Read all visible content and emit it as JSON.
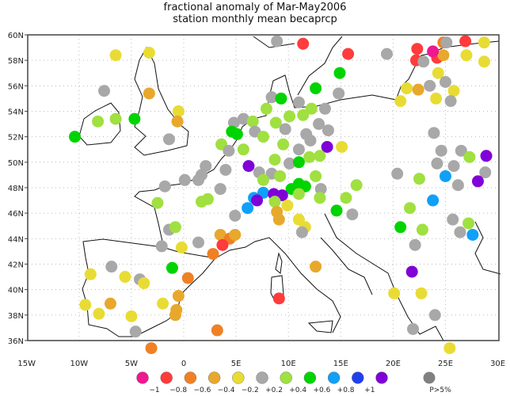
{
  "title": "fractional anomaly of Mar-May2006",
  "subtitle": "station monthly mean becaprcp",
  "map": {
    "lon_range": [
      -15,
      30
    ],
    "lat_range": [
      35,
      60
    ],
    "lon_ticks": [
      "15W",
      "10W",
      "5W",
      "0",
      "5E",
      "10E",
      "15E",
      "20E",
      "25E",
      "30E"
    ],
    "lat_ticks": [
      "36N",
      "38N",
      "40N",
      "42N",
      "44N",
      "46N",
      "48N",
      "50N",
      "52N",
      "54N",
      "56N",
      "58N",
      "60N"
    ],
    "grid": "dotted"
  },
  "legend": {
    "classes": [
      {
        "color": "#ee1890",
        "label": "−1"
      },
      {
        "color": "#ff3b3b",
        "label": "−0.8"
      },
      {
        "color": "#f08024",
        "label": "−0.6"
      },
      {
        "color": "#e8a82c",
        "label": "−0.4"
      },
      {
        "color": "#e8dc34",
        "label": "−0.2"
      },
      {
        "color": "#a8a8a8",
        "label": "+0.2"
      },
      {
        "color": "#a0e040",
        "label": "+0.4"
      },
      {
        "color": "#00d400",
        "label": "+0.6"
      },
      {
        "color": "#10a0f8",
        "label": "+0.8"
      },
      {
        "color": "#2040f0",
        "label": "+1"
      },
      {
        "color": "#8000d8",
        "label": ""
      }
    ],
    "significance": {
      "color": "#808080",
      "label": "P>5%"
    }
  },
  "stations": [
    [
      -6.5,
      58.4,
      4
    ],
    [
      -3.3,
      58.6,
      4
    ],
    [
      -7.6,
      55.6,
      5
    ],
    [
      -3.3,
      55.4,
      3
    ],
    [
      -0.5,
      54.0,
      4
    ],
    [
      -0.6,
      53.2,
      3
    ],
    [
      -8.2,
      53.2,
      6
    ],
    [
      -6.5,
      53.4,
      6
    ],
    [
      -4.7,
      53.4,
      7
    ],
    [
      -10.4,
      52.0,
      7
    ],
    [
      -1.4,
      51.8,
      5
    ],
    [
      8.9,
      59.5,
      5
    ],
    [
      11.4,
      59.3,
      1
    ],
    [
      15.7,
      58.5,
      1
    ],
    [
      14.9,
      57.0,
      7
    ],
    [
      19.4,
      58.5,
      5
    ],
    [
      12.6,
      55.8,
      7
    ],
    [
      14.8,
      55.4,
      5
    ],
    [
      8.4,
      55.1,
      5
    ],
    [
      9.3,
      55.0,
      7
    ],
    [
      11.0,
      54.7,
      5
    ],
    [
      24.8,
      59.4,
      2
    ],
    [
      25.1,
      59.4,
      5
    ],
    [
      26.9,
      59.5,
      1
    ],
    [
      28.7,
      59.4,
      4
    ],
    [
      22.3,
      58.9,
      1
    ],
    [
      22.2,
      58.0,
      1
    ],
    [
      22.9,
      57.9,
      5
    ],
    [
      24.2,
      58.2,
      1
    ],
    [
      24.8,
      58.4,
      3
    ],
    [
      23.8,
      58.7,
      0
    ],
    [
      27.0,
      58.4,
      4
    ],
    [
      28.7,
      57.9,
      4
    ],
    [
      24.3,
      57.0,
      4
    ],
    [
      25.0,
      56.3,
      5
    ],
    [
      21.3,
      55.8,
      4
    ],
    [
      22.4,
      55.7,
      3
    ],
    [
      23.5,
      56.0,
      5
    ],
    [
      25.8,
      55.6,
      4
    ],
    [
      24.1,
      55.0,
      4
    ],
    [
      25.5,
      54.8,
      5
    ],
    [
      20.7,
      54.8,
      4
    ],
    [
      7.9,
      54.2,
      6
    ],
    [
      10.1,
      53.6,
      6
    ],
    [
      11.4,
      53.7,
      6
    ],
    [
      12.2,
      54.2,
      6
    ],
    [
      13.5,
      54.2,
      5
    ],
    [
      4.8,
      53.1,
      5
    ],
    [
      5.7,
      53.4,
      5
    ],
    [
      6.6,
      53.2,
      6
    ],
    [
      8.8,
      53.1,
      6
    ],
    [
      9.7,
      52.6,
      5
    ],
    [
      4.6,
      52.4,
      7
    ],
    [
      5.1,
      52.2,
      7
    ],
    [
      6.8,
      52.4,
      5
    ],
    [
      7.6,
      52.0,
      6
    ],
    [
      12.9,
      53.0,
      5
    ],
    [
      13.8,
      52.5,
      5
    ],
    [
      11.7,
      52.2,
      5
    ],
    [
      12.1,
      51.7,
      5
    ],
    [
      3.6,
      51.4,
      6
    ],
    [
      5.7,
      51.0,
      6
    ],
    [
      4.3,
      50.9,
      5
    ],
    [
      9.5,
      51.4,
      6
    ],
    [
      11.0,
      51.0,
      5
    ],
    [
      13.7,
      51.2,
      10
    ],
    [
      15.1,
      51.2,
      4
    ],
    [
      6.2,
      49.7,
      10
    ],
    [
      8.7,
      50.2,
      6
    ],
    [
      10.1,
      49.9,
      5
    ],
    [
      11.0,
      50.0,
      7
    ],
    [
      12.0,
      50.4,
      6
    ],
    [
      13.0,
      50.5,
      6
    ],
    [
      2.1,
      49.7,
      5
    ],
    [
      4.0,
      49.4,
      5
    ],
    [
      1.7,
      49.0,
      5
    ],
    [
      1.4,
      48.6,
      5
    ],
    [
      0.1,
      48.6,
      5
    ],
    [
      7.2,
      49.2,
      5
    ],
    [
      8.4,
      49.1,
      5
    ],
    [
      7.6,
      48.6,
      6
    ],
    [
      9.2,
      48.9,
      6
    ],
    [
      12.6,
      48.9,
      6
    ],
    [
      11.0,
      48.3,
      7
    ],
    [
      11.6,
      48.1,
      7
    ],
    [
      10.3,
      47.9,
      7
    ],
    [
      11.0,
      47.5,
      6
    ],
    [
      13.1,
      47.9,
      5
    ],
    [
      16.5,
      48.2,
      6
    ],
    [
      3.5,
      47.9,
      5
    ],
    [
      1.7,
      46.9,
      6
    ],
    [
      2.3,
      47.1,
      6
    ],
    [
      7.6,
      47.6,
      8
    ],
    [
      8.6,
      47.5,
      10
    ],
    [
      9.4,
      47.4,
      10
    ],
    [
      6.7,
      47.2,
      8
    ],
    [
      7.0,
      47.0,
      10
    ],
    [
      8.7,
      46.9,
      6
    ],
    [
      9.9,
      46.6,
      4
    ],
    [
      13.0,
      47.2,
      6
    ],
    [
      15.5,
      47.2,
      6
    ],
    [
      6.1,
      46.4,
      8
    ],
    [
      8.9,
      46.1,
      3
    ],
    [
      9.1,
      45.5,
      3
    ],
    [
      4.9,
      45.8,
      5
    ],
    [
      11.0,
      45.5,
      4
    ],
    [
      11.6,
      44.9,
      4
    ],
    [
      11.3,
      44.5,
      5
    ],
    [
      14.6,
      46.2,
      7
    ],
    [
      16.1,
      45.9,
      5
    ],
    [
      -2.5,
      46.8,
      6
    ],
    [
      -1.8,
      48.1,
      5
    ],
    [
      -1.4,
      44.7,
      5
    ],
    [
      -0.8,
      44.9,
      6
    ],
    [
      1.4,
      43.7,
      5
    ],
    [
      3.5,
      44.3,
      3
    ],
    [
      4.4,
      44.0,
      2
    ],
    [
      4.9,
      44.3,
      3
    ],
    [
      3.7,
      43.5,
      1
    ],
    [
      2.8,
      42.8,
      2
    ],
    [
      -2.1,
      43.4,
      5
    ],
    [
      -0.2,
      43.3,
      4
    ],
    [
      -6.9,
      41.8,
      5
    ],
    [
      -1.1,
      41.7,
      7
    ],
    [
      -8.9,
      41.2,
      4
    ],
    [
      -5.6,
      41.0,
      4
    ],
    [
      -4.2,
      40.8,
      5
    ],
    [
      -3.8,
      40.5,
      4
    ],
    [
      0.4,
      40.9,
      2
    ],
    [
      -0.5,
      39.5,
      3
    ],
    [
      -2.0,
      38.9,
      4
    ],
    [
      -7.0,
      38.9,
      3
    ],
    [
      -9.4,
      38.8,
      4
    ],
    [
      -8.1,
      38.1,
      4
    ],
    [
      -0.7,
      38.4,
      3
    ],
    [
      -0.8,
      38.0,
      3
    ],
    [
      -5.0,
      37.9,
      4
    ],
    [
      -4.6,
      36.7,
      5
    ],
    [
      3.2,
      36.8,
      2
    ],
    [
      -3.1,
      35.4,
      2
    ],
    [
      12.6,
      41.8,
      3
    ],
    [
      9.1,
      39.3,
      1
    ],
    [
      21.6,
      46.4,
      6
    ],
    [
      23.8,
      47.0,
      8
    ],
    [
      25.7,
      45.5,
      5
    ],
    [
      27.2,
      45.2,
      6
    ],
    [
      26.4,
      44.5,
      5
    ],
    [
      27.6,
      44.3,
      8
    ],
    [
      20.7,
      44.9,
      7
    ],
    [
      22.8,
      44.7,
      6
    ],
    [
      22.1,
      43.5,
      5
    ],
    [
      21.8,
      41.4,
      10
    ],
    [
      20.1,
      39.7,
      4
    ],
    [
      22.7,
      39.7,
      4
    ],
    [
      24.0,
      38.0,
      5
    ],
    [
      21.9,
      36.9,
      5
    ],
    [
      25.4,
      35.4,
      4
    ],
    [
      23.9,
      52.3,
      5
    ],
    [
      24.6,
      50.9,
      5
    ],
    [
      26.5,
      50.9,
      5
    ],
    [
      27.3,
      50.4,
      6
    ],
    [
      28.9,
      50.5,
      10
    ],
    [
      24.2,
      49.9,
      5
    ],
    [
      25.8,
      49.7,
      5
    ],
    [
      28.8,
      49.2,
      5
    ],
    [
      28.1,
      48.5,
      10
    ],
    [
      25.0,
      48.9,
      8
    ],
    [
      20.4,
      49.1,
      5
    ],
    [
      22.5,
      48.7,
      6
    ],
    [
      26.2,
      48.2,
      5
    ]
  ]
}
